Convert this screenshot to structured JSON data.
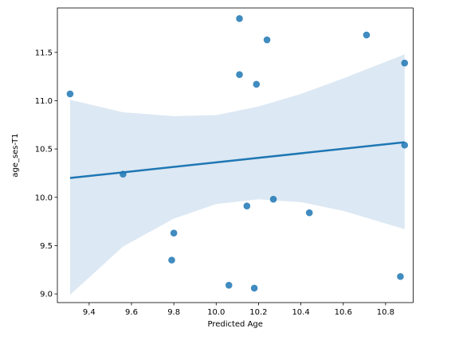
{
  "chart_data": {
    "type": "scatter",
    "title": "",
    "xlabel": "Predicted Age",
    "ylabel": "age_ses-T1",
    "xlim": [
      9.25,
      10.93
    ],
    "ylim": [
      8.91,
      11.96
    ],
    "xticks": [
      9.4,
      9.6,
      9.8,
      10.0,
      10.2,
      10.4,
      10.6,
      10.8
    ],
    "xtick_labels": [
      "9.4",
      "9.6",
      "9.8",
      "10.0",
      "10.2",
      "10.4",
      "10.6",
      "10.8"
    ],
    "yticks": [
      9.0,
      9.5,
      10.0,
      10.5,
      11.0,
      11.5
    ],
    "ytick_labels": [
      "9.0",
      "9.5",
      "10.0",
      "10.5",
      "11.0",
      "11.5"
    ],
    "grid": false,
    "legend": "none",
    "points": [
      {
        "x": 9.31,
        "y": 11.07
      },
      {
        "x": 9.56,
        "y": 10.24
      },
      {
        "x": 9.79,
        "y": 9.35
      },
      {
        "x": 9.8,
        "y": 9.63
      },
      {
        "x": 10.06,
        "y": 9.09
      },
      {
        "x": 10.11,
        "y": 11.85
      },
      {
        "x": 10.11,
        "y": 11.27
      },
      {
        "x": 10.145,
        "y": 9.91
      },
      {
        "x": 10.18,
        "y": 9.06
      },
      {
        "x": 10.19,
        "y": 11.17
      },
      {
        "x": 10.24,
        "y": 11.63
      },
      {
        "x": 10.27,
        "y": 9.98
      },
      {
        "x": 10.44,
        "y": 9.84
      },
      {
        "x": 10.71,
        "y": 11.68
      },
      {
        "x": 10.87,
        "y": 9.18
      },
      {
        "x": 10.89,
        "y": 11.39
      },
      {
        "x": 10.89,
        "y": 10.54
      }
    ],
    "regression_line": {
      "x": [
        9.31,
        10.89
      ],
      "y": [
        10.2,
        10.57
      ]
    },
    "confidence_band": {
      "x": [
        9.31,
        9.56,
        9.8,
        10.0,
        10.2,
        10.4,
        10.6,
        10.89
      ],
      "upper": [
        11.01,
        10.88,
        10.84,
        10.85,
        10.94,
        11.07,
        11.23,
        11.48
      ],
      "lower": [
        8.99,
        9.49,
        9.78,
        9.93,
        9.98,
        9.95,
        9.86,
        9.67
      ]
    },
    "colors": {
      "point": "#1f77b4",
      "line": "#1f77b4",
      "band": "#dce8f3"
    }
  }
}
